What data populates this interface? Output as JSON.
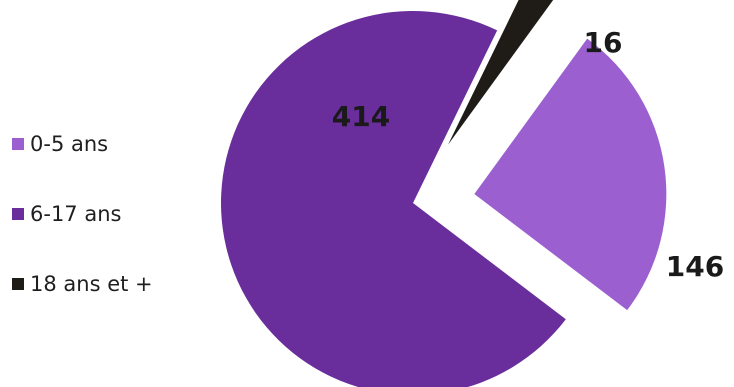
{
  "chart_data": {
    "type": "pie",
    "categories": [
      "0-5 ans",
      "6-17 ans",
      "18 ans et +"
    ],
    "values": [
      146,
      414,
      16
    ],
    "colors": [
      "#9b5fd0",
      "#6a2e9c",
      "#1f1c17"
    ],
    "exploded": [
      true,
      false,
      true
    ],
    "legend": "left",
    "data_labels": [
      "146",
      "414",
      "16"
    ]
  }
}
